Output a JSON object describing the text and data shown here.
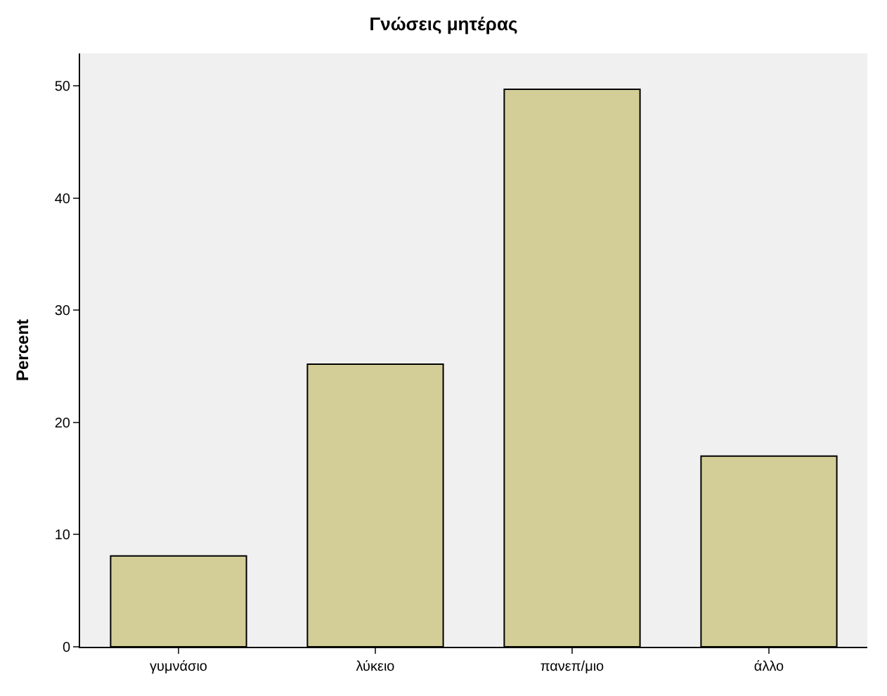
{
  "chart_data": {
    "type": "bar",
    "title": "Γνώσεις μητέρας",
    "ylabel": "Percent",
    "categories": [
      "γυμνάσιο",
      "λύκειο",
      "πανεπ/μιο",
      "άλλο"
    ],
    "values": [
      8.1,
      25.2,
      49.7,
      17.0
    ],
    "color": "#d3ce97",
    "ylim": [
      0,
      52.9
    ],
    "yticks": [
      0,
      10,
      20,
      30,
      40,
      50
    ],
    "grid": false
  }
}
